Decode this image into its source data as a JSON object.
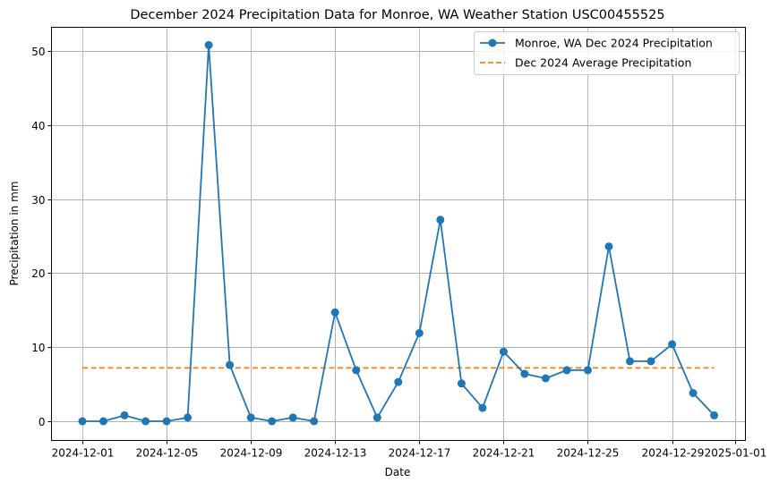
{
  "chart_data": {
    "type": "line",
    "title": "December 2024 Precipitation Data for Monroe, WA Weather Station USC00455525",
    "xlabel": "Date",
    "ylabel": "Precipitation in mm",
    "ylim": [
      -2.5,
      53.3
    ],
    "yticks": [
      0,
      10,
      20,
      30,
      40,
      50
    ],
    "xticks": [
      "2024-12-01",
      "2024-12-05",
      "2024-12-09",
      "2024-12-13",
      "2024-12-17",
      "2024-12-21",
      "2024-12-25",
      "2024-12-29",
      "2025-01-01"
    ],
    "grid": true,
    "legend_position": "upper right",
    "x": [
      "2024-12-01",
      "2024-12-02",
      "2024-12-03",
      "2024-12-04",
      "2024-12-05",
      "2024-12-06",
      "2024-12-07",
      "2024-12-08",
      "2024-12-09",
      "2024-12-10",
      "2024-12-11",
      "2024-12-12",
      "2024-12-13",
      "2024-12-14",
      "2024-12-15",
      "2024-12-16",
      "2024-12-17",
      "2024-12-18",
      "2024-12-19",
      "2024-12-20",
      "2024-12-21",
      "2024-12-22",
      "2024-12-23",
      "2024-12-24",
      "2024-12-25",
      "2024-12-26",
      "2024-12-27",
      "2024-12-28",
      "2024-12-29",
      "2024-12-30",
      "2024-12-31"
    ],
    "series": [
      {
        "name": "Monroe, WA Dec 2024 Precipitation",
        "style": "solid line with circle markers",
        "color": "#1f77b4",
        "values": [
          0.0,
          0.0,
          0.8,
          0.0,
          0.0,
          0.5,
          50.8,
          7.6,
          0.5,
          0.0,
          0.5,
          0.0,
          14.7,
          6.9,
          0.5,
          5.3,
          11.9,
          27.2,
          5.1,
          1.8,
          9.4,
          6.4,
          5.8,
          6.9,
          6.9,
          23.6,
          8.1,
          8.1,
          10.4,
          3.8,
          0.8
        ]
      },
      {
        "name": "Dec 2024 Average Precipitation",
        "style": "dashed line",
        "color": "#ff7f0e",
        "values": [
          7.2,
          7.2,
          7.2,
          7.2,
          7.2,
          7.2,
          7.2,
          7.2,
          7.2,
          7.2,
          7.2,
          7.2,
          7.2,
          7.2,
          7.2,
          7.2,
          7.2,
          7.2,
          7.2,
          7.2,
          7.2,
          7.2,
          7.2,
          7.2,
          7.2,
          7.2,
          7.2,
          7.2,
          7.2,
          7.2,
          7.2
        ]
      }
    ]
  },
  "colors": {
    "series_line": "#1f77b4",
    "average_line": "#ff7f0e",
    "grid": "#b0b0b0",
    "axes": "#000000",
    "legend_border": "#cccccc"
  }
}
